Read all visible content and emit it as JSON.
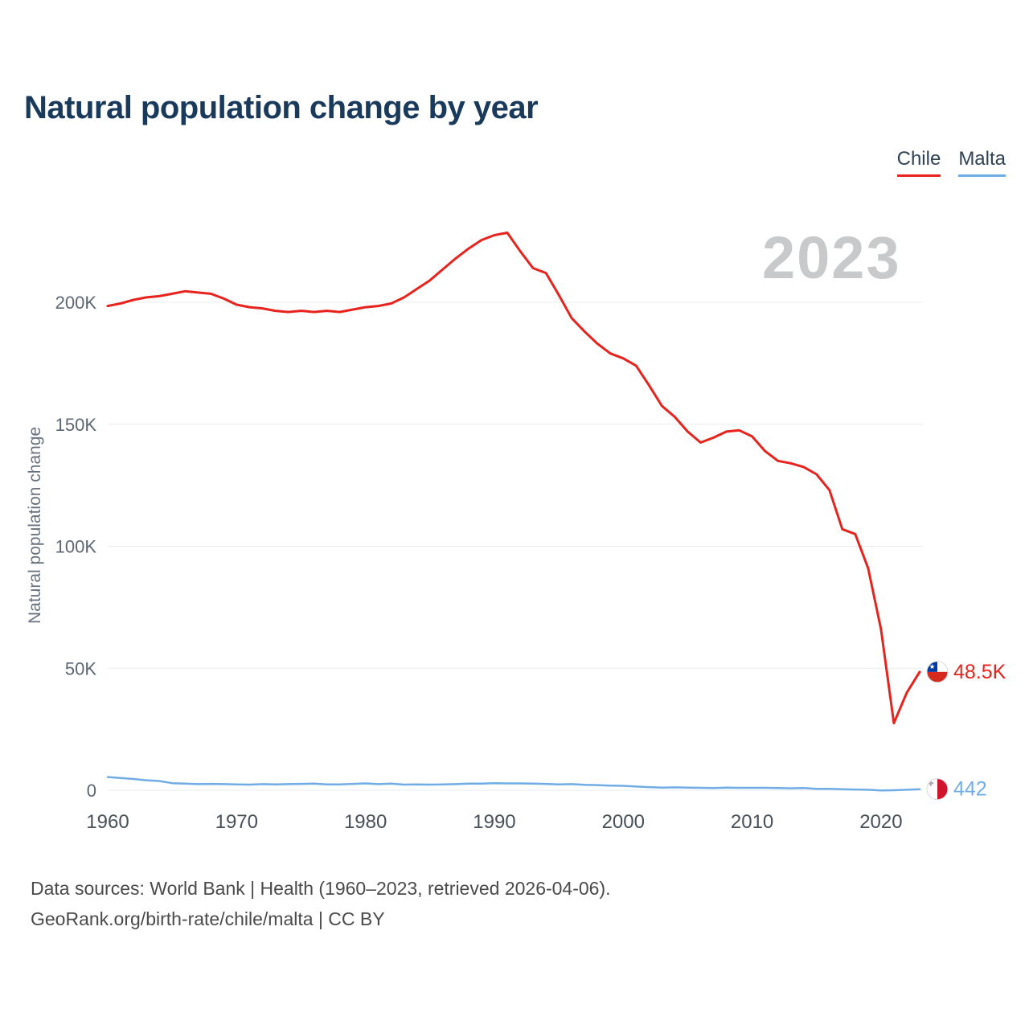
{
  "title": "Natural population change by year",
  "watermark": "2023",
  "legend": [
    {
      "label": "Chile",
      "color": "#e8231d"
    },
    {
      "label": "Malta",
      "color": "#70ade6"
    }
  ],
  "y_axis_title": "Natural population change",
  "footer": {
    "line1": "Data sources: World Bank | Health (1960–2023, retrieved 2026-04-06).",
    "line2": "GeoRank.org/birth-rate/chile/malta | CC BY"
  },
  "chart_data": {
    "type": "line",
    "title": "Natural population change by year",
    "xlabel": "",
    "ylabel": "Natural population change",
    "grid": true,
    "legend_position": "top-right",
    "xlim": [
      1960,
      2023
    ],
    "ylim": [
      0,
      235000
    ],
    "xticks": [
      1960,
      1970,
      1980,
      1990,
      2000,
      2010,
      2020
    ],
    "yticks": [
      {
        "value": 0,
        "label": "0"
      },
      {
        "value": 50000,
        "label": "50K"
      },
      {
        "value": 100000,
        "label": "100K"
      },
      {
        "value": 150000,
        "label": "150K"
      },
      {
        "value": 200000,
        "label": "200K"
      }
    ],
    "x": [
      1960,
      1961,
      1962,
      1963,
      1964,
      1965,
      1966,
      1967,
      1968,
      1969,
      1970,
      1971,
      1972,
      1973,
      1974,
      1975,
      1976,
      1977,
      1978,
      1979,
      1980,
      1981,
      1982,
      1983,
      1984,
      1985,
      1986,
      1987,
      1988,
      1989,
      1990,
      1991,
      1992,
      1993,
      1994,
      1995,
      1996,
      1997,
      1998,
      1999,
      2000,
      2001,
      2002,
      2003,
      2004,
      2005,
      2006,
      2007,
      2008,
      2009,
      2010,
      2011,
      2012,
      2013,
      2014,
      2015,
      2016,
      2017,
      2018,
      2019,
      2020,
      2021,
      2022,
      2023
    ],
    "series": [
      {
        "name": "Chile",
        "color": "#e8231d",
        "end_label": "48.5K",
        "flag": "chile",
        "values": [
          198500,
          199500,
          201000,
          202000,
          202500,
          203500,
          204500,
          204000,
          203500,
          201500,
          199000,
          198000,
          197500,
          196500,
          196000,
          196500,
          196000,
          196500,
          196000,
          197000,
          198000,
          198500,
          199500,
          202000,
          205500,
          209000,
          213500,
          218000,
          222000,
          225500,
          227500,
          228500,
          221000,
          214000,
          212000,
          203000,
          193500,
          188000,
          183000,
          179000,
          177000,
          174000,
          166000,
          157500,
          153000,
          147000,
          142500,
          144500,
          147000,
          147500,
          145000,
          139000,
          135000,
          134000,
          132500,
          129500,
          123000,
          107000,
          105000,
          91000,
          66000,
          27500,
          40000,
          48500
        ]
      },
      {
        "name": "Malta",
        "color": "#70ade6",
        "end_label": "442",
        "flag": "malta",
        "values": [
          5400,
          5000,
          4600,
          4100,
          3800,
          2900,
          2700,
          2500,
          2600,
          2500,
          2400,
          2300,
          2500,
          2400,
          2500,
          2600,
          2700,
          2400,
          2400,
          2600,
          2800,
          2500,
          2700,
          2300,
          2400,
          2300,
          2400,
          2500,
          2700,
          2700,
          2900,
          2800,
          2800,
          2700,
          2600,
          2400,
          2500,
          2200,
          2100,
          1900,
          1800,
          1500,
          1300,
          1100,
          1200,
          1100,
          1000,
          900,
          1100,
          1000,
          1000,
          1000,
          900,
          800,
          900,
          600,
          600,
          400,
          300,
          200,
          -100,
          0,
          200,
          442
        ]
      }
    ]
  }
}
